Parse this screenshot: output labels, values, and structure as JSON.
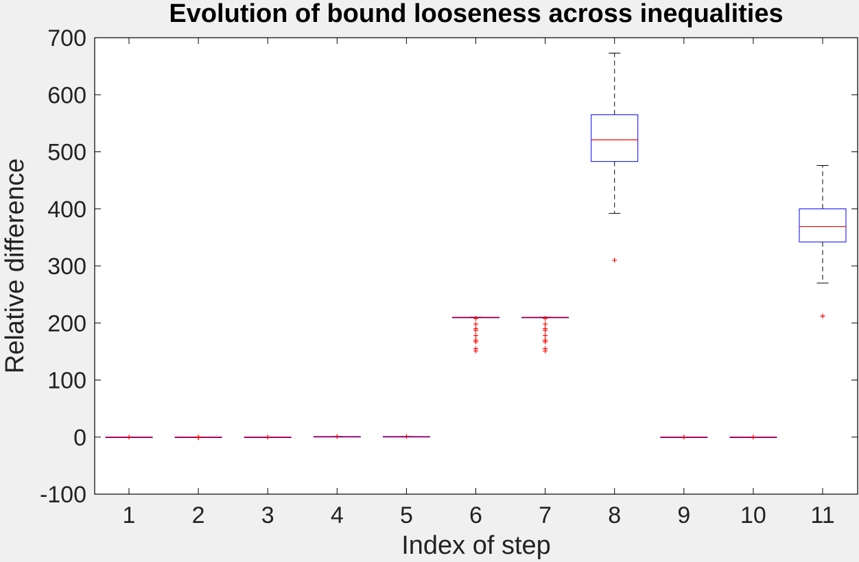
{
  "chart_data": {
    "type": "boxplot",
    "title": "Evolution of bound looseness across inequalities",
    "xlabel": "Index of step",
    "ylabel": "Relative difference",
    "ylim": [
      -100,
      700
    ],
    "yticks": [
      -100,
      0,
      100,
      200,
      300,
      400,
      500,
      600,
      700
    ],
    "categories": [
      "1",
      "2",
      "3",
      "4",
      "5",
      "6",
      "7",
      "8",
      "9",
      "10",
      "11"
    ],
    "grid": false,
    "boxes": [
      {
        "category": "1",
        "q1": 0,
        "median": 0,
        "q3": 0,
        "whisker_low": 0,
        "whisker_high": 0,
        "outliers": [
          0
        ]
      },
      {
        "category": "2",
        "q1": 0,
        "median": 0,
        "q3": 0,
        "whisker_low": 0,
        "whisker_high": 0,
        "outliers": [
          -1,
          0
        ]
      },
      {
        "category": "3",
        "q1": 0,
        "median": 0,
        "q3": 0,
        "whisker_low": 0,
        "whisker_high": 0,
        "outliers": [
          0
        ]
      },
      {
        "category": "4",
        "q1": 1,
        "median": 1,
        "q3": 1,
        "whisker_low": 1,
        "whisker_high": 1,
        "outliers": [
          1
        ]
      },
      {
        "category": "5",
        "q1": 1,
        "median": 1,
        "q3": 1,
        "whisker_low": 1,
        "whisker_high": 1,
        "outliers": [
          1
        ]
      },
      {
        "category": "6",
        "q1": 210,
        "median": 210,
        "q3": 210,
        "whisker_low": 210,
        "whisker_high": 210,
        "outliers": [
          208,
          198,
          190,
          187,
          178,
          170,
          167,
          155,
          151
        ]
      },
      {
        "category": "7",
        "q1": 210,
        "median": 210,
        "q3": 210,
        "whisker_low": 210,
        "whisker_high": 210,
        "outliers": [
          208,
          198,
          190,
          187,
          178,
          170,
          167,
          155,
          151
        ]
      },
      {
        "category": "8",
        "q1": 483,
        "median": 521,
        "q3": 565,
        "whisker_low": 392,
        "whisker_high": 673,
        "outliers": [
          310
        ]
      },
      {
        "category": "9",
        "q1": 0,
        "median": 0,
        "q3": 0,
        "whisker_low": 0,
        "whisker_high": 0,
        "outliers": [
          0
        ]
      },
      {
        "category": "10",
        "q1": 0,
        "median": 0,
        "q3": 0,
        "whisker_low": 0,
        "whisker_high": 0,
        "outliers": [
          0
        ]
      },
      {
        "category": "11",
        "q1": 342,
        "median": 369,
        "q3": 400,
        "whisker_low": 270,
        "whisker_high": 476,
        "outliers": [
          212
        ]
      }
    ],
    "colors": {
      "box": "#0000ff",
      "median": "#ff0000",
      "whisker": "#000000",
      "outlier": "#ff0000",
      "plot_bg": "#ffffff",
      "figure_bg": "#f0f0f0"
    }
  }
}
